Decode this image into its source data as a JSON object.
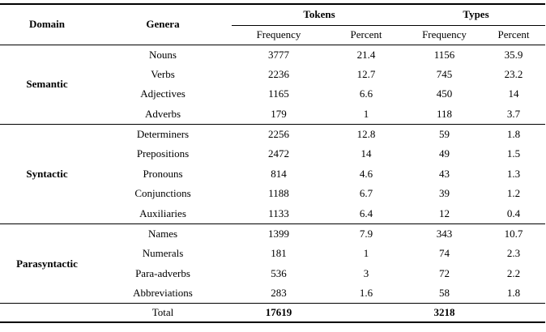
{
  "header": {
    "domain": "Domain",
    "genera": "Genera",
    "tokens": "Tokens",
    "types": "Types",
    "frequency": "Frequency",
    "percent": "Percent"
  },
  "groups": [
    {
      "domain": "Semantic",
      "rows": [
        {
          "genus": "Nouns",
          "tok_freq": "3777",
          "tok_pct": "21.4",
          "typ_freq": "1156",
          "typ_pct": "35.9"
        },
        {
          "genus": "Verbs",
          "tok_freq": "2236",
          "tok_pct": "12.7",
          "typ_freq": "745",
          "typ_pct": "23.2"
        },
        {
          "genus": "Adjectives",
          "tok_freq": "1165",
          "tok_pct": "6.6",
          "typ_freq": "450",
          "typ_pct": "14"
        },
        {
          "genus": "Adverbs",
          "tok_freq": "179",
          "tok_pct": "1",
          "typ_freq": "118",
          "typ_pct": "3.7"
        }
      ]
    },
    {
      "domain": "Syntactic",
      "rows": [
        {
          "genus": "Determiners",
          "tok_freq": "2256",
          "tok_pct": "12.8",
          "typ_freq": "59",
          "typ_pct": "1.8"
        },
        {
          "genus": "Prepositions",
          "tok_freq": "2472",
          "tok_pct": "14",
          "typ_freq": "49",
          "typ_pct": "1.5"
        },
        {
          "genus": "Pronouns",
          "tok_freq": "814",
          "tok_pct": "4.6",
          "typ_freq": "43",
          "typ_pct": "1.3"
        },
        {
          "genus": "Conjunctions",
          "tok_freq": "1188",
          "tok_pct": "6.7",
          "typ_freq": "39",
          "typ_pct": "1.2"
        },
        {
          "genus": "Auxiliaries",
          "tok_freq": "1133",
          "tok_pct": "6.4",
          "typ_freq": "12",
          "typ_pct": "0.4"
        }
      ]
    },
    {
      "domain": "Parasyntactic",
      "rows": [
        {
          "genus": "Names",
          "tok_freq": "1399",
          "tok_pct": "7.9",
          "typ_freq": "343",
          "typ_pct": "10.7"
        },
        {
          "genus": "Numerals",
          "tok_freq": "181",
          "tok_pct": "1",
          "typ_freq": "74",
          "typ_pct": "2.3"
        },
        {
          "genus": "Para-adverbs",
          "tok_freq": "536",
          "tok_pct": "3",
          "typ_freq": "72",
          "typ_pct": "2.2"
        },
        {
          "genus": "Abbreviations",
          "tok_freq": "283",
          "tok_pct": "1.6",
          "typ_freq": "58",
          "typ_pct": "1.8"
        }
      ]
    }
  ],
  "total": {
    "label": "Total",
    "tok_freq": "17619",
    "typ_freq": "3218"
  }
}
